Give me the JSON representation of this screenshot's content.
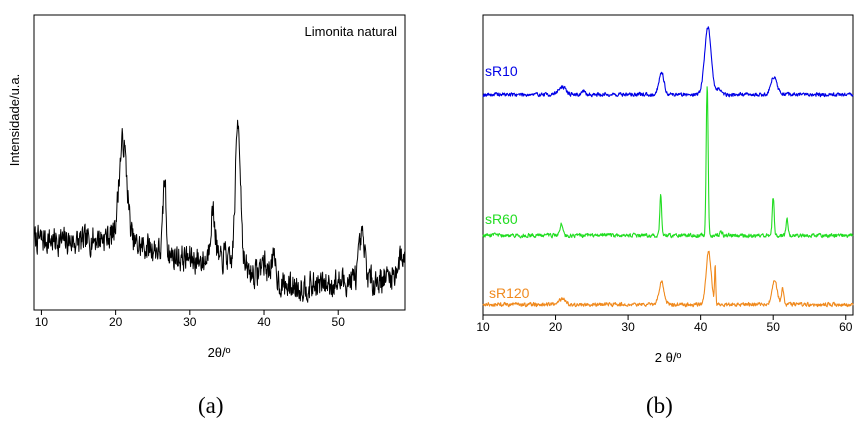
{
  "panels": [
    {
      "caption": "(a)",
      "chart_data": {
        "type": "line",
        "title": "",
        "xlabel": "2θ/º",
        "ylabel": "Intensidade/u.a.",
        "xlim": [
          9,
          59
        ],
        "ylim": [
          0,
          100
        ],
        "xticks": [
          10,
          20,
          30,
          40,
          50
        ],
        "yticks_shown": false,
        "grid": false,
        "annotation": "Limonita natural",
        "series": [
          {
            "color": "#000000",
            "noisy": true,
            "baseline": [
              [
                9,
                24
              ],
              [
                15,
                23
              ],
              [
                19,
                25
              ],
              [
                22,
                22
              ],
              [
                25,
                21
              ],
              [
                28,
                18
              ],
              [
                31,
                17
              ],
              [
                34,
                16
              ],
              [
                37,
                14
              ],
              [
                40,
                11
              ],
              [
                43,
                8
              ],
              [
                46,
                8
              ],
              [
                49,
                9
              ],
              [
                52,
                10
              ],
              [
                55,
                10
              ],
              [
                58,
                12
              ],
              [
                59,
                13
              ]
            ],
            "peaks": [
              {
                "x": 21.0,
                "h": 34,
                "w": 0.55
              },
              {
                "x": 26.6,
                "h": 25,
                "w": 0.2
              },
              {
                "x": 33.1,
                "h": 17,
                "w": 0.35
              },
              {
                "x": 34.8,
                "h": 4,
                "w": 0.25
              },
              {
                "x": 36.5,
                "h": 50,
                "w": 0.35
              },
              {
                "x": 39.9,
                "h": 5,
                "w": 0.4
              },
              {
                "x": 41.2,
                "h": 7,
                "w": 0.4
              },
              {
                "x": 53.2,
                "h": 14,
                "w": 0.4
              },
              {
                "x": 58.6,
                "h": 6,
                "w": 0.5
              }
            ]
          }
        ]
      }
    },
    {
      "caption": "(b)",
      "chart_data": {
        "type": "line",
        "title": "",
        "xlabel": "2 θ/º",
        "ylabel": "",
        "xlim": [
          10,
          61
        ],
        "ylim": [
          0,
          100
        ],
        "xticks": [
          10,
          20,
          30,
          40,
          50,
          60
        ],
        "yticks_shown": false,
        "grid": false,
        "series": [
          {
            "name": "sR10",
            "color": "#0000e6",
            "noisy": true,
            "baseline": [
              [
                10,
                73.5
              ],
              [
                61,
                73.5
              ]
            ],
            "peaks": [
              {
                "x": 20.9,
                "h": 2.5,
                "w": 0.5
              },
              {
                "x": 23.8,
                "h": 1.2,
                "w": 0.2
              },
              {
                "x": 34.6,
                "h": 7.5,
                "w": 0.35
              },
              {
                "x": 41.0,
                "h": 22.5,
                "w": 0.45
              },
              {
                "x": 42.5,
                "h": 2.0,
                "w": 0.3
              },
              {
                "x": 50.1,
                "h": 6.0,
                "w": 0.4
              }
            ]
          },
          {
            "name": "sR60",
            "color": "#22dd22",
            "noisy": true,
            "baseline": [
              [
                10,
                26.5
              ],
              [
                61,
                26.5
              ]
            ],
            "peaks": [
              {
                "x": 20.8,
                "h": 4.0,
                "w": 0.18
              },
              {
                "x": 34.5,
                "h": 13.5,
                "w": 0.13
              },
              {
                "x": 40.9,
                "h": 50.0,
                "w": 0.13
              },
              {
                "x": 42.8,
                "h": 1.5,
                "w": 0.15
              },
              {
                "x": 50.0,
                "h": 12.5,
                "w": 0.13
              },
              {
                "x": 51.9,
                "h": 6.0,
                "w": 0.13
              }
            ]
          },
          {
            "name": "sR120",
            "color": "#f08a1e",
            "noisy": true,
            "baseline": [
              [
                10,
                3.5
              ],
              [
                61,
                3.5
              ]
            ],
            "peaks": [
              {
                "x": 20.9,
                "h": 2.0,
                "w": 0.4
              },
              {
                "x": 34.6,
                "h": 7.5,
                "w": 0.35
              },
              {
                "x": 41.1,
                "h": 17.5,
                "w": 0.35
              },
              {
                "x": 42.0,
                "h": 12.5,
                "w": 0.08
              },
              {
                "x": 50.2,
                "h": 8.0,
                "w": 0.35
              },
              {
                "x": 51.3,
                "h": 5.0,
                "w": 0.15
              }
            ]
          }
        ]
      }
    }
  ]
}
